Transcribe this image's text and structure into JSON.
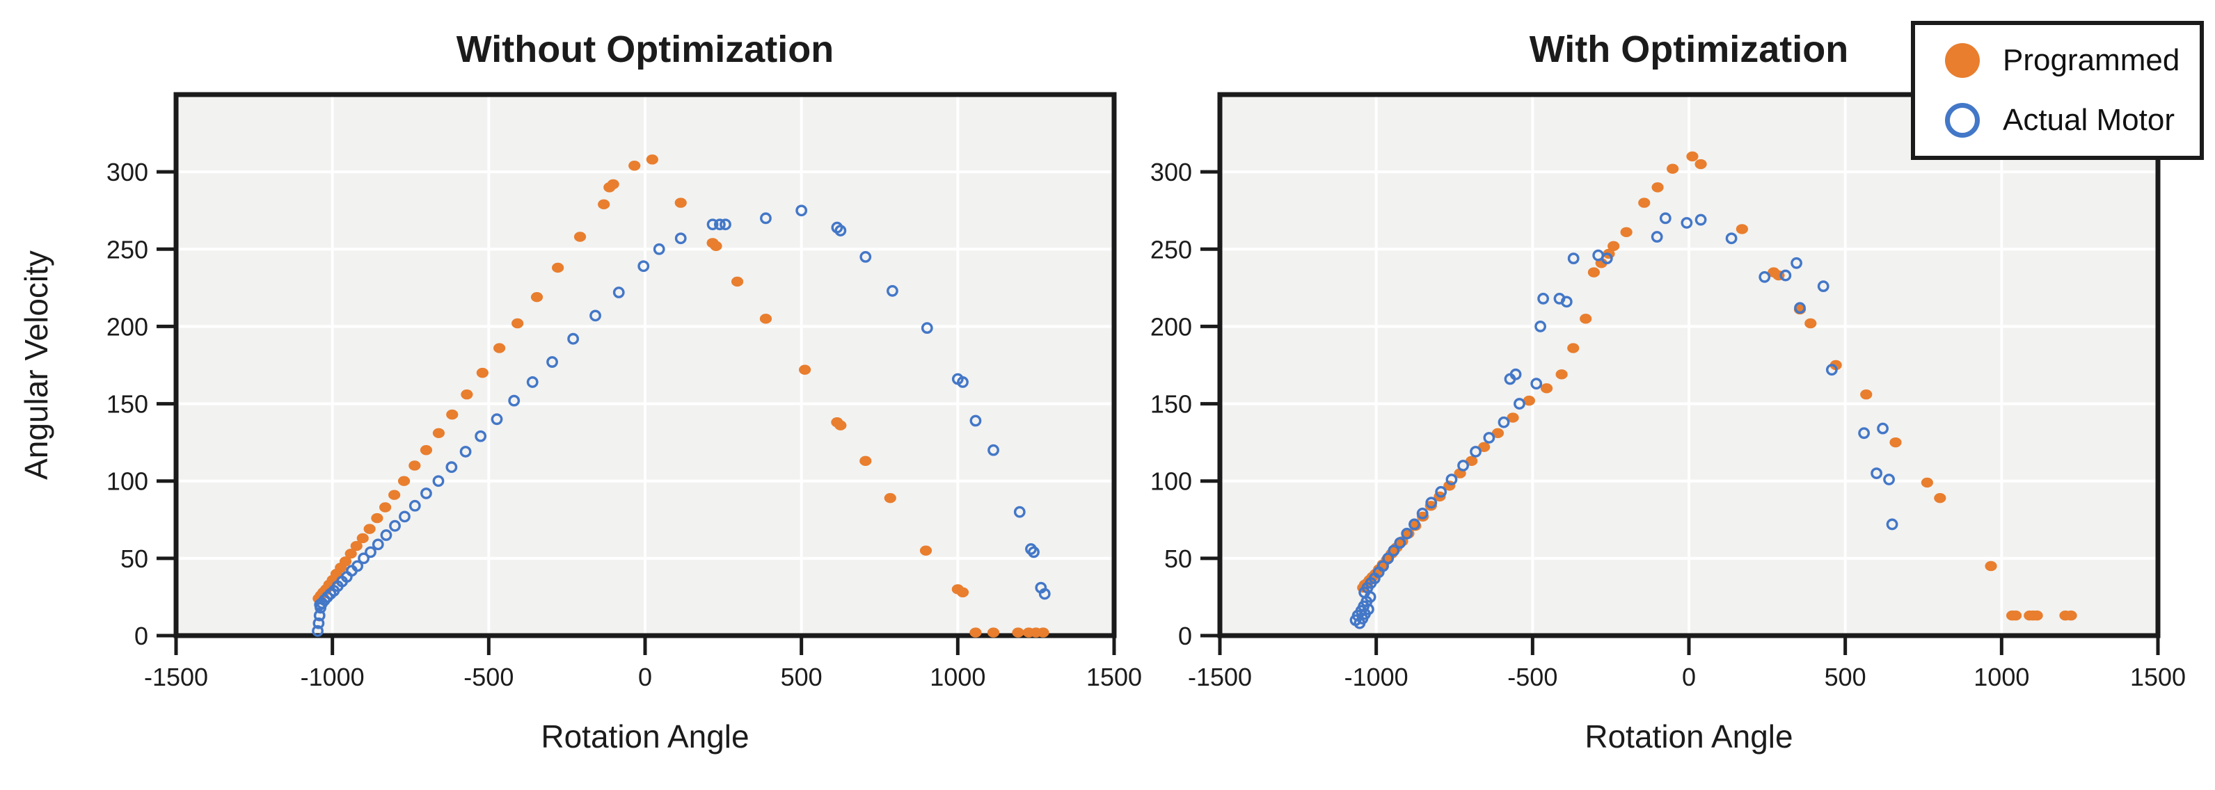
{
  "figure": {
    "background": "#ffffff",
    "plot_background": "#f2f2f1",
    "grid_color": "#ffffff",
    "frame_color": "#1b1b1b",
    "text_color": "#1b1b1b",
    "accent_orange": "#e87e2e",
    "accent_blue": "#4377c7"
  },
  "legend": {
    "items": [
      {
        "label": "Programmed",
        "marker": "filled-circle",
        "color": "#e87e2e"
      },
      {
        "label": "Actual Motor",
        "marker": "open-circle",
        "color": "#4377c7"
      }
    ]
  },
  "chart_data": [
    {
      "type": "scatter",
      "title": "Without Optimization",
      "xlabel": "Rotation Angle",
      "ylabel": "Angular Velocity",
      "xlim": [
        -1500,
        1500
      ],
      "ylim": [
        0,
        350
      ],
      "xticks": [
        -1500,
        -1000,
        -500,
        0,
        500,
        1000,
        1500
      ],
      "yticks": [
        0,
        50,
        100,
        150,
        200,
        250,
        300
      ],
      "grid": true,
      "legend_position": "none",
      "series": [
        {
          "name": "Programmed",
          "marker": "filled-circle",
          "color": "#e87e2e",
          "points": [
            [
              -1044,
              24
            ],
            [
              -1037,
              26
            ],
            [
              -1029,
              28
            ],
            [
              -1020,
              30
            ],
            [
              -1010,
              33
            ],
            [
              -999,
              36
            ],
            [
              -987,
              40
            ],
            [
              -973,
              44
            ],
            [
              -958,
              48
            ],
            [
              -941,
              53
            ],
            [
              -923,
              58
            ],
            [
              -903,
              63
            ],
            [
              -881,
              69
            ],
            [
              -857,
              76
            ],
            [
              -831,
              83
            ],
            [
              -802,
              91
            ],
            [
              -771,
              100
            ],
            [
              -737,
              110
            ],
            [
              -700,
              120
            ],
            [
              -660,
              131
            ],
            [
              -617,
              143
            ],
            [
              -570,
              156
            ],
            [
              -520,
              170
            ],
            [
              -466,
              186
            ],
            [
              -408,
              202
            ],
            [
              -346,
              219
            ],
            [
              -279,
              238
            ],
            [
              -208,
              258
            ],
            [
              -132,
              279
            ],
            [
              -114,
              290
            ],
            [
              -102,
              292
            ],
            [
              -34,
              304
            ],
            [
              23,
              308
            ],
            [
              114,
              280
            ],
            [
              216,
              254
            ],
            [
              227,
              252
            ],
            [
              295,
              229
            ],
            [
              386,
              205
            ],
            [
              511,
              172
            ],
            [
              614,
              138
            ],
            [
              625,
              136
            ],
            [
              705,
              113
            ],
            [
              784,
              89
            ],
            [
              898,
              55
            ],
            [
              1000,
              30
            ],
            [
              1016,
              28
            ],
            [
              1057,
              2
            ],
            [
              1114,
              2
            ],
            [
              1193,
              2
            ],
            [
              1227,
              2
            ],
            [
              1250,
              2
            ],
            [
              1273,
              2
            ]
          ]
        },
        {
          "name": "Actual Motor",
          "marker": "open-circle",
          "color": "#4377c7",
          "points": [
            [
              -1047,
              3
            ],
            [
              -1044,
              8
            ],
            [
              -1041,
              13
            ],
            [
              -1038,
              18
            ],
            [
              -1040,
              20
            ],
            [
              -1033,
              21
            ],
            [
              -1025,
              23
            ],
            [
              -1016,
              25
            ],
            [
              -1006,
              27
            ],
            [
              -995,
              29
            ],
            [
              -983,
              32
            ],
            [
              -969,
              35
            ],
            [
              -954,
              38
            ],
            [
              -938,
              42
            ],
            [
              -920,
              45
            ],
            [
              -900,
              50
            ],
            [
              -878,
              54
            ],
            [
              -854,
              59
            ],
            [
              -828,
              65
            ],
            [
              -800,
              71
            ],
            [
              -769,
              77
            ],
            [
              -736,
              84
            ],
            [
              -700,
              92
            ],
            [
              -661,
              100
            ],
            [
              -619,
              109
            ],
            [
              -574,
              119
            ],
            [
              -526,
              129
            ],
            [
              -474,
              140
            ],
            [
              -419,
              152
            ],
            [
              -360,
              164
            ],
            [
              -297,
              177
            ],
            [
              -230,
              192
            ],
            [
              -159,
              207
            ],
            [
              -84,
              222
            ],
            [
              -5,
              239
            ],
            [
              45,
              250
            ],
            [
              114,
              257
            ],
            [
              216,
              266
            ],
            [
              239,
              266
            ],
            [
              257,
              266
            ],
            [
              386,
              270
            ],
            [
              500,
              275
            ],
            [
              614,
              264
            ],
            [
              625,
              262
            ],
            [
              705,
              245
            ],
            [
              791,
              223
            ],
            [
              902,
              199
            ],
            [
              1000,
              166
            ],
            [
              1016,
              164
            ],
            [
              1057,
              139
            ],
            [
              1114,
              120
            ],
            [
              1198,
              80
            ],
            [
              1234,
              56
            ],
            [
              1243,
              54
            ],
            [
              1266,
              31
            ],
            [
              1278,
              27
            ]
          ]
        }
      ]
    },
    {
      "type": "scatter",
      "title": "With Optimization",
      "xlabel": "Rotation Angle",
      "ylabel": "",
      "xlim": [
        -1500,
        1500
      ],
      "ylim": [
        0,
        350
      ],
      "xticks": [
        -1500,
        -1000,
        -500,
        0,
        500,
        1000,
        1500
      ],
      "yticks": [
        0,
        50,
        100,
        150,
        200,
        250,
        300
      ],
      "grid": true,
      "legend_position": "upper right",
      "series": [
        {
          "name": "Programmed",
          "marker": "filled-circle",
          "color": "#e87e2e",
          "points": [
            [
              -1042,
              31
            ],
            [
              -1036,
              33
            ],
            [
              -1029,
              34
            ],
            [
              -1021,
              36
            ],
            [
              -1012,
              38
            ],
            [
              -1002,
              40
            ],
            [
              -991,
              43
            ],
            [
              -979,
              46
            ],
            [
              -966,
              49
            ],
            [
              -951,
              53
            ],
            [
              -935,
              57
            ],
            [
              -917,
              61
            ],
            [
              -897,
              66
            ],
            [
              -875,
              71
            ],
            [
              -851,
              77
            ],
            [
              -825,
              84
            ],
            [
              -797,
              90
            ],
            [
              -766,
              97
            ],
            [
              -732,
              105
            ],
            [
              -695,
              113
            ],
            [
              -655,
              122
            ],
            [
              -611,
              131
            ],
            [
              -563,
              141
            ],
            [
              -511,
              152
            ],
            [
              -455,
              160
            ],
            [
              -407,
              169
            ],
            [
              -370,
              186
            ],
            [
              -330,
              205
            ],
            [
              -304,
              235
            ],
            [
              -280,
              241
            ],
            [
              -256,
              247
            ],
            [
              -241,
              252
            ],
            [
              -200,
              261
            ],
            [
              -143,
              280
            ],
            [
              -100,
              290
            ],
            [
              -52,
              302
            ],
            [
              11,
              310
            ],
            [
              38,
              305
            ],
            [
              170,
              263
            ],
            [
              271,
              235
            ],
            [
              287,
              233
            ],
            [
              355,
              211
            ],
            [
              389,
              202
            ],
            [
              470,
              175
            ],
            [
              567,
              156
            ],
            [
              661,
              125
            ],
            [
              762,
              99
            ],
            [
              803,
              89
            ],
            [
              966,
              45
            ],
            [
              1034,
              13
            ],
            [
              1045,
              13
            ],
            [
              1090,
              13
            ],
            [
              1101,
              13
            ],
            [
              1113,
              13
            ],
            [
              1204,
              13
            ],
            [
              1222,
              13
            ]
          ]
        },
        {
          "name": "Actual Motor",
          "marker": "open-circle",
          "color": "#4377c7",
          "points": [
            [
              -1066,
              10
            ],
            [
              -1059,
              13
            ],
            [
              -1053,
              8
            ],
            [
              -1048,
              16
            ],
            [
              -1044,
              11
            ],
            [
              -1040,
              19
            ],
            [
              -1036,
              14
            ],
            [
              -1031,
              22
            ],
            [
              -1025,
              17
            ],
            [
              -1019,
              25
            ],
            [
              -1038,
              28
            ],
            [
              -1028,
              31
            ],
            [
              -1017,
              34
            ],
            [
              -1005,
              37
            ],
            [
              -992,
              41
            ],
            [
              -978,
              45
            ],
            [
              -962,
              50
            ],
            [
              -944,
              55
            ],
            [
              -924,
              60
            ],
            [
              -902,
              66
            ],
            [
              -878,
              72
            ],
            [
              -852,
              79
            ],
            [
              -824,
              86
            ],
            [
              -793,
              93
            ],
            [
              -759,
              101
            ],
            [
              -722,
              110
            ],
            [
              -682,
              119
            ],
            [
              -639,
              128
            ],
            [
              -592,
              138
            ],
            [
              -542,
              150
            ],
            [
              -488,
              163
            ],
            [
              -572,
              166
            ],
            [
              -554,
              169
            ],
            [
              -475,
              200
            ],
            [
              -466,
              218
            ],
            [
              -414,
              218
            ],
            [
              -391,
              216
            ],
            [
              -369,
              244
            ],
            [
              -290,
              246
            ],
            [
              -262,
              244
            ],
            [
              -102,
              258
            ],
            [
              -75,
              270
            ],
            [
              -7,
              267
            ],
            [
              38,
              269
            ],
            [
              136,
              257
            ],
            [
              242,
              232
            ],
            [
              309,
              233
            ],
            [
              344,
              241
            ],
            [
              355,
              212
            ],
            [
              430,
              226
            ],
            [
              457,
              172
            ],
            [
              560,
              131
            ],
            [
              620,
              134
            ],
            [
              600,
              105
            ],
            [
              640,
              101
            ],
            [
              650,
              72
            ]
          ]
        }
      ]
    }
  ]
}
